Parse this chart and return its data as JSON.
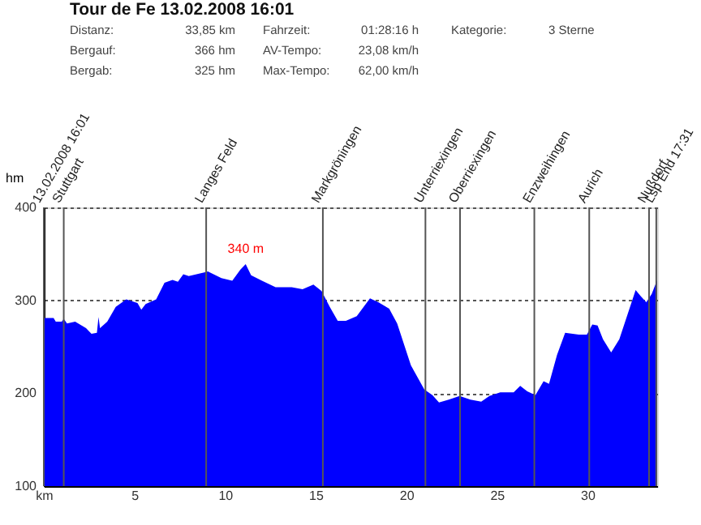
{
  "chart_data": {
    "type": "area",
    "title": "Tour de Fe 13.02.2008 16:01",
    "annotations": [
      "Distanz:",
      "33,85 km",
      "Fahrzeit:",
      "01:28:16 h",
      "Kategorie:",
      "3 Sterne",
      "Bergauf:",
      "366 hm",
      "AV-Tempo:",
      "23,08 km/h",
      "Bergab:",
      "325 hm",
      "Max-Tempo:",
      "62,00 km/h",
      {
        "text": "340 m",
        "x": 11.14,
        "y": 339
      },
      "13.02.2008 16:01",
      "Lsp End 17:31"
    ],
    "ylabel": "hm",
    "x": [
      0,
      0.54,
      0.66,
      0.99,
      1.1,
      1.28,
      1.73,
      2.33,
      2.63,
      2.93,
      3.02,
      3.1,
      3.5,
      3.97,
      4.55,
      5.17,
      5.38,
      5.62,
      6.2,
      6.66,
      7.1,
      7.4,
      7.7,
      8.0,
      9.05,
      9.8,
      10.4,
      10.85,
      11.14,
      11.44,
      12.04,
      12.79,
      13.68,
      14.28,
      14.88,
      15.33,
      15.78,
      16.22,
      16.67,
      17.27,
      18.0,
      18.46,
      19.06,
      19.5,
      20.26,
      21.0,
      21.45,
      21.81,
      22.35,
      22.95,
      23.54,
      24.14,
      24.59,
      25.19,
      25.93,
      26.29,
      26.68,
      27.13,
      27.58,
      27.88,
      28.32,
      28.77,
      29.52,
      29.97,
      30.27,
      30.56,
      30.86,
      31.31,
      31.76,
      32.66,
      32.96,
      33.25,
      33.55,
      33.85
    ],
    "series": [
      {
        "color": "#0000ff",
        "values": [
          281,
          281,
          277,
          277,
          280,
          275,
          277,
          270,
          264,
          265,
          282,
          270,
          277,
          293,
          301,
          297,
          290,
          296,
          301,
          319,
          322,
          320,
          328,
          326,
          331,
          324,
          321,
          333,
          339,
          327,
          321,
          314,
          314,
          312,
          317,
          310,
          293,
          278,
          278,
          283,
          302,
          298,
          291,
          275,
          230,
          204,
          198,
          190,
          193,
          197,
          193,
          191,
          197,
          201,
          201,
          208,
          202,
          198,
          213,
          210,
          241,
          265,
          263,
          263,
          274,
          273,
          258,
          244,
          258,
          311,
          304,
          298,
          307,
          322
        ]
      }
    ],
    "xlim": [
      0,
      33.85
    ],
    "xticks": [
      {
        "value": 0,
        "label": "km"
      },
      5,
      10,
      15,
      20,
      25,
      30
    ],
    "ylim": [
      100,
      400
    ],
    "yticks": [
      100,
      200,
      300,
      400
    ],
    "grid": "y",
    "ref_lines": [
      {
        "axis": "x",
        "value": 0,
        "color": "#555555"
      },
      {
        "axis": "x",
        "value": 1.1,
        "label": "Stuttgart",
        "color": "#555555"
      },
      {
        "axis": "x",
        "value": 8.96,
        "label": "Langes Feld",
        "color": "#555555"
      },
      {
        "axis": "x",
        "value": 15.4,
        "label": "Markgröningen",
        "color": "#555555"
      },
      {
        "axis": "x",
        "value": 21.06,
        "label": "Unterriexingen",
        "color": "#555555"
      },
      {
        "axis": "x",
        "value": 22.97,
        "label": "Oberriexingen",
        "color": "#555555"
      },
      {
        "axis": "x",
        "value": 27.07,
        "label": "Enzweihingen",
        "color": "#555555"
      },
      {
        "axis": "x",
        "value": 30.1,
        "label": "Aurich",
        "color": "#555555"
      },
      {
        "axis": "x",
        "value": 33.4,
        "label": "Nußdorf",
        "color": "#555555"
      },
      {
        "axis": "x",
        "value": 33.8,
        "color": "#555555"
      }
    ]
  }
}
